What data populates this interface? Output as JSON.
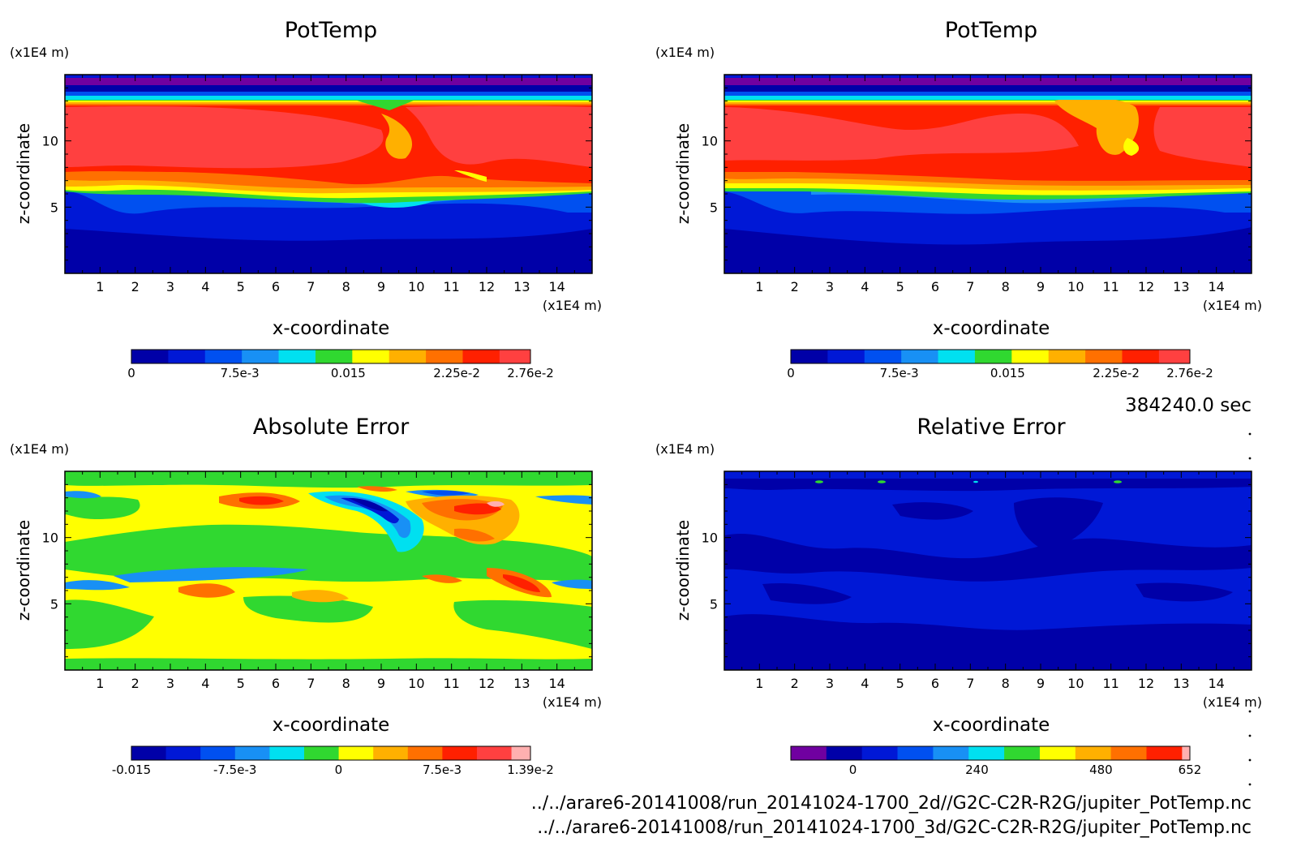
{
  "timestamp": "384240.0 sec",
  "files": [
    "../../arare6-20141008/run_20141024-1700_2d//G2C-C2R-R2G/jupiter_PotTemp.nc",
    "../../arare6-20141008/run_20141024-1700_3d/G2C-C2R-R2G/jupiter_PotTemp.nc"
  ],
  "colors": {
    "ramp": [
      "#0000a8",
      "#0018d6",
      "#0050f0",
      "#1890f5",
      "#00e0f0",
      "#30d830",
      "#ffff00",
      "#ffb000",
      "#ff7000",
      "#ff2000",
      "#ff4040",
      "#ffb0b0"
    ],
    "purple": "#7000a0"
  },
  "chart_data": [
    {
      "type": "heatmap",
      "title": "PotTemp",
      "xlabel": "x-coordinate",
      "ylabel": "z-coordinate",
      "x_unit": "(x1E4 m)",
      "y_unit": "(x1E4 m)",
      "x_ticks": [
        "1",
        "2",
        "3",
        "4",
        "5",
        "6",
        "7",
        "8",
        "9",
        "10",
        "11",
        "12",
        "13",
        "14"
      ],
      "y_ticks": [
        "5",
        "10"
      ],
      "xlim": [
        0,
        15
      ],
      "ylim": [
        0,
        15
      ],
      "colorbar_labels": [
        "0",
        "7.5e-3",
        "0.015",
        "2.25e-2",
        "2.76e-2"
      ],
      "colorbar_range": [
        0,
        0.0276
      ]
    },
    {
      "type": "heatmap",
      "title": "PotTemp",
      "xlabel": "x-coordinate",
      "ylabel": "z-coordinate",
      "x_unit": "(x1E4 m)",
      "y_unit": "(x1E4 m)",
      "x_ticks": [
        "1",
        "2",
        "3",
        "4",
        "5",
        "6",
        "7",
        "8",
        "9",
        "10",
        "11",
        "12",
        "13",
        "14"
      ],
      "y_ticks": [
        "5",
        "10"
      ],
      "xlim": [
        0,
        15
      ],
      "ylim": [
        0,
        15
      ],
      "colorbar_labels": [
        "0",
        "7.5e-3",
        "0.015",
        "2.25e-2",
        "2.76e-2"
      ],
      "colorbar_range": [
        0,
        0.0276
      ]
    },
    {
      "type": "heatmap",
      "title": "Absolute Error",
      "xlabel": "x-coordinate",
      "ylabel": "z-coordinate",
      "x_unit": "(x1E4 m)",
      "y_unit": "(x1E4 m)",
      "x_ticks": [
        "1",
        "2",
        "3",
        "4",
        "5",
        "6",
        "7",
        "8",
        "9",
        "10",
        "11",
        "12",
        "13",
        "14"
      ],
      "y_ticks": [
        "5",
        "10"
      ],
      "xlim": [
        0,
        15
      ],
      "ylim": [
        0,
        15
      ],
      "colorbar_labels": [
        "-0.015",
        "-7.5e-3",
        "0",
        "7.5e-3",
        "1.39e-2"
      ],
      "colorbar_range": [
        -0.015,
        0.0139
      ]
    },
    {
      "type": "heatmap",
      "title": "Relative Error",
      "xlabel": "x-coordinate",
      "ylabel": "z-coordinate",
      "x_unit": "(x1E4 m)",
      "y_unit": "(x1E4 m)",
      "x_ticks": [
        "1",
        "2",
        "3",
        "4",
        "5",
        "6",
        "7",
        "8",
        "9",
        "10",
        "11",
        "12",
        "13",
        "14"
      ],
      "y_ticks": [
        "5",
        "10"
      ],
      "xlim": [
        0,
        15
      ],
      "ylim": [
        0,
        15
      ],
      "colorbar_labels": [
        "0",
        "240",
        "480",
        "652"
      ],
      "colorbar_range": [
        -120,
        652
      ]
    }
  ]
}
